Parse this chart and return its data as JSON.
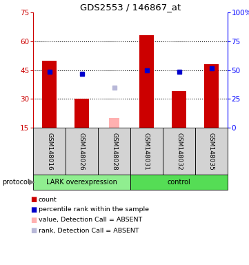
{
  "title": "GDS2553 / 146867_at",
  "samples": [
    "GSM148016",
    "GSM148026",
    "GSM148028",
    "GSM148031",
    "GSM148032",
    "GSM148035"
  ],
  "red_bars": [
    50,
    30,
    null,
    63,
    34,
    48
  ],
  "blue_dots": [
    44,
    43,
    null,
    45,
    44,
    46
  ],
  "pink_bars": [
    null,
    null,
    20,
    null,
    null,
    null
  ],
  "lavender_dots": [
    null,
    null,
    36,
    null,
    null,
    null
  ],
  "ylim_left": [
    15,
    75
  ],
  "ylim_right": [
    0,
    100
  ],
  "yticks_left": [
    15,
    30,
    45,
    60,
    75
  ],
  "yticks_right": [
    0,
    25,
    50,
    75,
    100
  ],
  "ytick_labels_right": [
    "0",
    "25",
    "50",
    "75",
    "100%"
  ],
  "dotted_lines": [
    30,
    45,
    60
  ],
  "bar_width": 0.45,
  "red_color": "#CC0000",
  "blue_color": "#0000CC",
  "pink_color": "#FFB0B0",
  "lavender_color": "#B8B8D8",
  "group_bg_color1": "#90EE90",
  "group_bg_color2": "#55DD55",
  "sample_bg_color": "#D3D3D3",
  "protocol_label": "protocol",
  "lark_label": "LARK overexpression",
  "control_label": "control",
  "legend_items": [
    {
      "label": "count",
      "color": "#CC0000"
    },
    {
      "label": "percentile rank within the sample",
      "color": "#0000CC"
    },
    {
      "label": "value, Detection Call = ABSENT",
      "color": "#FFB0B0"
    },
    {
      "label": "rank, Detection Call = ABSENT",
      "color": "#B8B8D8"
    }
  ]
}
